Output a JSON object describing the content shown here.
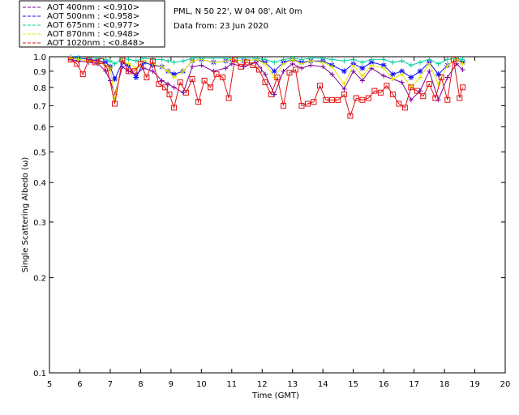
{
  "chart_data": {
    "type": "line",
    "title": "",
    "header_lines": [
      "PML, N 50 22', W 04 08', Alt 0m",
      "Data from: 23 Jun 2020"
    ],
    "xlabel": "Time (GMT)",
    "ylabel": "Single Scattering Albedo (ω)",
    "xlim": [
      5,
      20
    ],
    "ylim": [
      0.1,
      1.0
    ],
    "yscale": "log",
    "grid": false,
    "legend_position": "top-left",
    "x_ticks": [
      "5",
      "6",
      "7",
      "8",
      "9",
      "10",
      "11",
      "12",
      "13",
      "14",
      "15",
      "16",
      "17",
      "18",
      "19",
      "20"
    ],
    "y_ticks": [
      "0.1",
      "0.2",
      "0.3",
      "0.4",
      "0.5",
      "0.6",
      "0.7",
      "0.8",
      "0.9",
      "1.0"
    ],
    "y_tick_values": [
      0.1,
      0.2,
      0.3,
      0.4,
      0.5,
      0.6,
      0.7,
      0.8,
      0.9,
      1.0
    ],
    "series": [
      {
        "name": "AOT  400nm : <0.910>",
        "color": "#8000a0",
        "marker": "plus",
        "x": [
          5.7,
          5.95,
          6.3,
          6.6,
          6.85,
          7.0,
          7.15,
          7.4,
          7.6,
          7.85,
          8.1,
          8.4,
          8.7,
          8.9,
          9.1,
          9.4,
          9.7,
          10.0,
          10.4,
          10.8,
          11.0,
          11.4,
          11.8,
          12.1,
          12.4,
          12.7,
          13.0,
          13.3,
          13.6,
          14.0,
          14.3,
          14.7,
          15.0,
          15.3,
          15.6,
          16.0,
          16.3,
          16.6,
          16.9,
          17.2,
          17.5,
          17.8,
          18.1,
          18.4,
          18.6
        ],
        "y": [
          0.98,
          0.97,
          0.96,
          0.95,
          0.9,
          0.84,
          0.76,
          0.93,
          0.9,
          0.88,
          0.92,
          0.9,
          0.84,
          0.82,
          0.8,
          0.77,
          0.93,
          0.94,
          0.9,
          0.92,
          0.95,
          0.93,
          0.96,
          0.88,
          0.76,
          0.9,
          0.95,
          0.92,
          0.94,
          0.93,
          0.88,
          0.79,
          0.9,
          0.84,
          0.92,
          0.87,
          0.85,
          0.83,
          0.73,
          0.78,
          0.9,
          0.73,
          0.86,
          0.95,
          0.91
        ]
      },
      {
        "name": "AOT  500nm : <0.958>",
        "color": "#1010ff",
        "marker": "star",
        "x": [
          5.7,
          5.95,
          6.3,
          6.6,
          6.85,
          7.0,
          7.15,
          7.4,
          7.6,
          7.85,
          8.1,
          8.4,
          8.7,
          8.9,
          9.1,
          9.4,
          9.7,
          10.0,
          10.4,
          10.8,
          11.0,
          11.4,
          11.8,
          12.1,
          12.4,
          12.7,
          13.0,
          13.3,
          13.6,
          14.0,
          14.3,
          14.7,
          15.0,
          15.3,
          15.6,
          16.0,
          16.3,
          16.6,
          16.9,
          17.2,
          17.5,
          17.8,
          18.1,
          18.4,
          18.6
        ],
        "y": [
          0.99,
          0.99,
          0.98,
          0.97,
          0.96,
          0.93,
          0.85,
          0.96,
          0.94,
          0.86,
          0.96,
          0.94,
          0.93,
          0.9,
          0.88,
          0.9,
          0.97,
          0.98,
          0.96,
          0.97,
          0.98,
          0.97,
          0.98,
          0.96,
          0.9,
          0.96,
          0.98,
          0.96,
          0.97,
          0.97,
          0.94,
          0.9,
          0.95,
          0.92,
          0.96,
          0.94,
          0.88,
          0.9,
          0.86,
          0.9,
          0.96,
          0.88,
          0.94,
          0.98,
          0.96
        ]
      },
      {
        "name": "AOT  675nm : <0.977>",
        "color": "#00d0a0",
        "marker": "plus",
        "x": [
          5.7,
          5.95,
          6.3,
          6.6,
          6.85,
          7.0,
          7.15,
          7.4,
          7.6,
          7.85,
          8.1,
          8.4,
          8.7,
          8.9,
          9.1,
          9.4,
          9.7,
          10.0,
          10.4,
          10.8,
          11.0,
          11.4,
          11.8,
          12.1,
          12.4,
          12.7,
          13.0,
          13.3,
          13.6,
          14.0,
          14.3,
          14.7,
          15.0,
          15.3,
          15.6,
          16.0,
          16.3,
          16.6,
          16.9,
          17.2,
          17.5,
          17.8,
          18.1,
          18.4,
          18.6
        ],
        "y": [
          1.0,
          0.99,
          0.99,
          0.99,
          0.98,
          0.97,
          0.95,
          0.99,
          0.98,
          0.97,
          0.99,
          0.98,
          0.98,
          0.97,
          0.96,
          0.97,
          0.99,
          0.99,
          0.99,
          0.99,
          0.99,
          0.99,
          0.99,
          0.98,
          0.96,
          0.98,
          0.99,
          0.98,
          0.99,
          0.99,
          0.98,
          0.97,
          0.98,
          0.96,
          0.98,
          0.98,
          0.96,
          0.97,
          0.94,
          0.96,
          0.98,
          0.95,
          0.98,
          0.99,
          0.98
        ]
      },
      {
        "name": "AOT  870nm : <0.948>",
        "color": "#e8e800",
        "marker": "plus",
        "x": [
          5.7,
          5.95,
          6.3,
          6.6,
          6.85,
          7.0,
          7.15,
          7.4,
          7.6,
          7.85,
          8.1,
          8.4,
          8.7,
          8.9,
          9.1,
          9.4,
          9.7,
          10.0,
          10.4,
          10.8,
          11.0,
          11.4,
          11.8,
          12.1,
          12.4,
          12.7,
          13.0,
          13.3,
          13.6,
          14.0,
          14.3,
          14.7,
          15.0,
          15.3,
          15.6,
          16.0,
          16.3,
          16.6,
          16.9,
          17.2,
          17.5,
          17.8,
          18.1,
          18.4,
          18.6
        ],
        "y": [
          0.99,
          0.98,
          0.97,
          0.96,
          0.94,
          0.92,
          0.74,
          0.97,
          0.95,
          0.92,
          0.97,
          0.95,
          0.93,
          0.9,
          0.86,
          0.9,
          0.97,
          0.98,
          0.96,
          0.97,
          0.98,
          0.97,
          0.98,
          0.95,
          0.86,
          0.95,
          0.98,
          0.95,
          0.97,
          0.96,
          0.93,
          0.82,
          0.94,
          0.87,
          0.94,
          0.92,
          0.85,
          0.88,
          0.8,
          0.86,
          0.95,
          0.82,
          0.94,
          0.98,
          0.95
        ]
      },
      {
        "name": "AOT 1020nm : <0.848>",
        "color": "#e01010",
        "marker": "square",
        "x": [
          5.7,
          5.9,
          6.1,
          6.3,
          6.5,
          6.7,
          6.9,
          7.15,
          7.4,
          7.6,
          7.8,
          8.0,
          8.2,
          8.4,
          8.6,
          8.8,
          8.95,
          9.1,
          9.3,
          9.5,
          9.7,
          9.9,
          10.1,
          10.3,
          10.5,
          10.7,
          10.9,
          11.1,
          11.3,
          11.5,
          11.7,
          11.9,
          12.1,
          12.3,
          12.5,
          12.7,
          12.9,
          13.1,
          13.3,
          13.5,
          13.7,
          13.9,
          14.1,
          14.3,
          14.5,
          14.7,
          14.9,
          15.1,
          15.3,
          15.5,
          15.7,
          15.9,
          16.1,
          16.3,
          16.5,
          16.7,
          16.9,
          17.1,
          17.3,
          17.5,
          17.7,
          17.9,
          18.1,
          18.3,
          18.5,
          18.6
        ],
        "y": [
          0.98,
          0.95,
          0.88,
          0.98,
          0.96,
          0.97,
          0.92,
          0.71,
          0.98,
          0.9,
          0.9,
          0.95,
          0.86,
          0.97,
          0.82,
          0.8,
          0.76,
          0.69,
          0.83,
          0.77,
          0.85,
          0.72,
          0.84,
          0.8,
          0.88,
          0.86,
          0.74,
          0.98,
          0.93,
          0.96,
          0.94,
          0.91,
          0.83,
          0.76,
          0.86,
          0.7,
          0.89,
          0.91,
          0.7,
          0.71,
          0.72,
          0.81,
          0.73,
          0.73,
          0.73,
          0.76,
          0.65,
          0.74,
          0.73,
          0.74,
          0.78,
          0.77,
          0.81,
          0.76,
          0.71,
          0.69,
          0.8,
          0.78,
          0.75,
          0.82,
          0.74,
          0.86,
          0.73,
          0.98,
          0.74,
          0.8
        ]
      }
    ]
  }
}
